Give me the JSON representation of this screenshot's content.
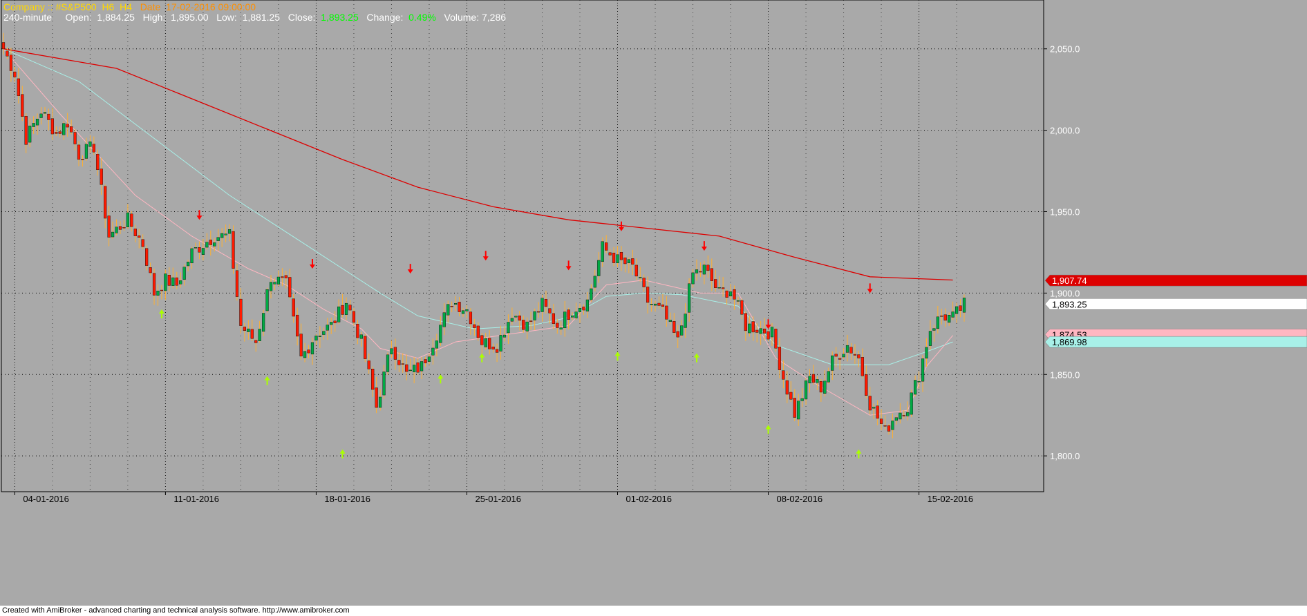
{
  "header": {
    "company_label": "Company ::",
    "symbol": "#S&P500",
    "flags": "H6  H4",
    "date_label": "Date",
    "date_value": "17-02-2016 09:00:00",
    "interval": "240-minute",
    "open_label": "Open:",
    "open_value": "1,884.25",
    "high_label": "High:",
    "high_value": "1,895.00",
    "low_label": "Low:",
    "low_value": "1,881.25",
    "close_label": "Close:",
    "close_value": "1,893.25",
    "change_label": "Change:",
    "change_value": "0.49%",
    "volume_label": "Volume:",
    "volume_value": "7,286"
  },
  "footer": {
    "text": "Created with AmiBroker - advanced charting and technical analysis software. http://www.amibroker.com"
  },
  "colors": {
    "background": "#a9a9a9",
    "bull": "#00aa44",
    "bear": "#ff1a00",
    "wick": "#ffb030",
    "ma_long": "#dd0000",
    "ma_mid": "#a8f0e8",
    "ma_short": "#ffb6c1",
    "signal_sell": "#ff0000",
    "signal_buy": "#aaff00",
    "company_text": "#ffd700",
    "date_text": "#ff9000",
    "close_text": "#00ff00"
  },
  "chart_data": {
    "type": "candlestick",
    "ylim": [
      1778,
      2080
    ],
    "yticks": [
      1800,
      1850,
      1900,
      1950,
      2000,
      2050
    ],
    "ytick_labels": [
      "1,800.0",
      "1,850.0",
      "1,900.0",
      "1,950.0",
      "2,000.0",
      "2,050.0"
    ],
    "xtick_labels": [
      "04-01-2016",
      "11-01-2016",
      "18-01-2016",
      "25-01-2016",
      "01-02-2016",
      "08-02-2016",
      "15-02-2016"
    ],
    "xtick_bar_index": [
      3,
      43,
      83,
      123,
      163,
      203,
      243
    ],
    "bar_count": 256,
    "price_tags": [
      {
        "label": "1,907.74",
        "value": 1907.74,
        "bg": "#dd0000",
        "fg": "#ffffff"
      },
      {
        "label": "1,893.25",
        "value": 1893.25,
        "bg": "#ffffff",
        "fg": "#000000"
      },
      {
        "label": "1,874.53",
        "value": 1874.53,
        "bg": "#ffb6c1",
        "fg": "#000000"
      },
      {
        "label": "1,869.98",
        "value": 1869.98,
        "bg": "#a8f0e8",
        "fg": "#000000"
      }
    ],
    "anchors": [
      [
        0,
        2050
      ],
      [
        3,
        2035
      ],
      [
        6,
        1995
      ],
      [
        10,
        2012
      ],
      [
        14,
        1998
      ],
      [
        17,
        2005
      ],
      [
        20,
        1985
      ],
      [
        24,
        1990
      ],
      [
        28,
        1935
      ],
      [
        33,
        1945
      ],
      [
        37,
        1930
      ],
      [
        40,
        1900
      ],
      [
        43,
        1908
      ],
      [
        46,
        1905
      ],
      [
        50,
        1925
      ],
      [
        56,
        1935
      ],
      [
        60,
        1935
      ],
      [
        63,
        1880
      ],
      [
        67,
        1870
      ],
      [
        71,
        1910
      ],
      [
        75,
        1905
      ],
      [
        79,
        1860
      ],
      [
        83,
        1875
      ],
      [
        87,
        1880
      ],
      [
        91,
        1895
      ],
      [
        95,
        1870
      ],
      [
        99,
        1830
      ],
      [
        103,
        1868
      ],
      [
        107,
        1850
      ],
      [
        111,
        1855
      ],
      [
        115,
        1875
      ],
      [
        119,
        1895
      ],
      [
        123,
        1890
      ],
      [
        127,
        1870
      ],
      [
        131,
        1868
      ],
      [
        135,
        1888
      ],
      [
        139,
        1880
      ],
      [
        143,
        1893
      ],
      [
        147,
        1880
      ],
      [
        151,
        1890
      ],
      [
        155,
        1895
      ],
      [
        159,
        1928
      ],
      [
        163,
        1920
      ],
      [
        167,
        1916
      ],
      [
        171,
        1895
      ],
      [
        175,
        1888
      ],
      [
        179,
        1870
      ],
      [
        183,
        1912
      ],
      [
        186,
        1915
      ],
      [
        190,
        1900
      ],
      [
        193,
        1902
      ],
      [
        197,
        1880
      ],
      [
        201,
        1878
      ],
      [
        204,
        1875
      ],
      [
        207,
        1848
      ],
      [
        210,
        1826
      ],
      [
        214,
        1848
      ],
      [
        217,
        1842
      ],
      [
        220,
        1858
      ],
      [
        224,
        1868
      ],
      [
        227,
        1860
      ],
      [
        230,
        1832
      ],
      [
        234,
        1815
      ],
      [
        237,
        1826
      ],
      [
        240,
        1830
      ],
      [
        243,
        1850
      ],
      [
        246,
        1878
      ],
      [
        249,
        1886
      ],
      [
        252,
        1885
      ],
      [
        255,
        1893
      ]
    ],
    "sell_signals": [
      52,
      82,
      108,
      128,
      150,
      164,
      186,
      203,
      230
    ],
    "sell_signal_values": [
      1945,
      1915,
      1912,
      1920,
      1914,
      1938,
      1926,
      1878,
      1900
    ],
    "buy_signals": [
      42,
      70,
      90,
      116,
      127,
      163,
      184,
      203,
      227
    ],
    "buy_signal_values": [
      1890,
      1849,
      1804,
      1850,
      1863,
      1864,
      1863,
      1819,
      1804
    ],
    "ma_long_points": [
      [
        0,
        2050
      ],
      [
        30,
        2038
      ],
      [
        60,
        2010
      ],
      [
        90,
        1982
      ],
      [
        110,
        1965
      ],
      [
        130,
        1953
      ],
      [
        150,
        1945
      ],
      [
        170,
        1940
      ],
      [
        190,
        1935
      ],
      [
        210,
        1922
      ],
      [
        230,
        1910
      ],
      [
        252,
        1908
      ]
    ],
    "ma_mid_points": [
      [
        0,
        2050
      ],
      [
        20,
        2030
      ],
      [
        40,
        1995
      ],
      [
        60,
        1960
      ],
      [
        80,
        1930
      ],
      [
        100,
        1900
      ],
      [
        110,
        1886
      ],
      [
        125,
        1878
      ],
      [
        140,
        1880
      ],
      [
        150,
        1885
      ],
      [
        160,
        1898
      ],
      [
        170,
        1900
      ],
      [
        180,
        1899
      ],
      [
        195,
        1892
      ],
      [
        205,
        1868
      ],
      [
        220,
        1856
      ],
      [
        235,
        1856
      ],
      [
        245,
        1864
      ],
      [
        252,
        1870
      ]
    ],
    "ma_short_points": [
      [
        0,
        2050
      ],
      [
        15,
        2010
      ],
      [
        35,
        1960
      ],
      [
        50,
        1935
      ],
      [
        65,
        1915
      ],
      [
        75,
        1905
      ],
      [
        85,
        1890
      ],
      [
        95,
        1878
      ],
      [
        100,
        1866
      ],
      [
        110,
        1860
      ],
      [
        120,
        1870
      ],
      [
        135,
        1875
      ],
      [
        150,
        1880
      ],
      [
        160,
        1905
      ],
      [
        170,
        1908
      ],
      [
        185,
        1900
      ],
      [
        195,
        1900
      ],
      [
        205,
        1860
      ],
      [
        215,
        1845
      ],
      [
        230,
        1825
      ],
      [
        240,
        1828
      ],
      [
        245,
        1855
      ],
      [
        252,
        1874
      ]
    ]
  }
}
